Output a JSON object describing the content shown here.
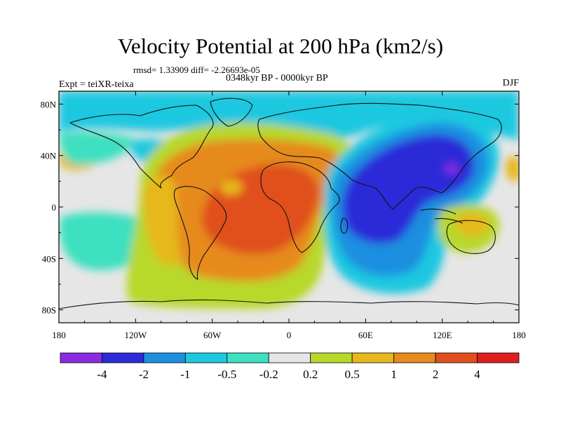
{
  "title": "Velocity Potential at 200 hPa (km2/s)",
  "rmsd_line": "rmsd= 1.33909 diff= -2.26693e-05",
  "experiment": "Expt = teiXR-teixa",
  "period": "0348kyr BP - 0000kyr BP",
  "season": "DJF",
  "lat_ticks": [
    {
      "label": "80N",
      "lat": 80
    },
    {
      "label": "40N",
      "lat": 40
    },
    {
      "label": "0",
      "lat": 0
    },
    {
      "label": "40S",
      "lat": -40
    },
    {
      "label": "80S",
      "lat": -80
    }
  ],
  "lon_ticks": [
    {
      "label": "180",
      "lon": -180
    },
    {
      "label": "120W",
      "lon": -120
    },
    {
      "label": "60W",
      "lon": -60
    },
    {
      "label": "0",
      "lon": 0
    },
    {
      "label": "60E",
      "lon": 60
    },
    {
      "label": "120E",
      "lon": 120
    },
    {
      "label": "180",
      "lon": 180
    }
  ],
  "colorbar": {
    "colors": [
      "#8a2be2",
      "#2b2bd8",
      "#1e8fe0",
      "#1ec8e0",
      "#3de0c0",
      "#e6e6e6",
      "#b8d82b",
      "#e6b81e",
      "#e68a1e",
      "#e0501e",
      "#e01e1e"
    ],
    "labels": [
      "-4",
      "-2",
      "-1",
      "-0.5",
      "-0.2",
      "0.2",
      "0.5",
      "1",
      "2",
      "4"
    ]
  },
  "map_colors": {
    "neutral": "#e6e6e6",
    "cyan": "#1ec8e0",
    "teal": "#3de0c0",
    "light_blue": "#1e8fe0",
    "blue": "#2b2bd8",
    "purple": "#8a2be2",
    "yellow_green": "#b8d82b",
    "gold": "#e6b81e",
    "orange": "#e68a1e",
    "red_orange": "#e0501e"
  }
}
